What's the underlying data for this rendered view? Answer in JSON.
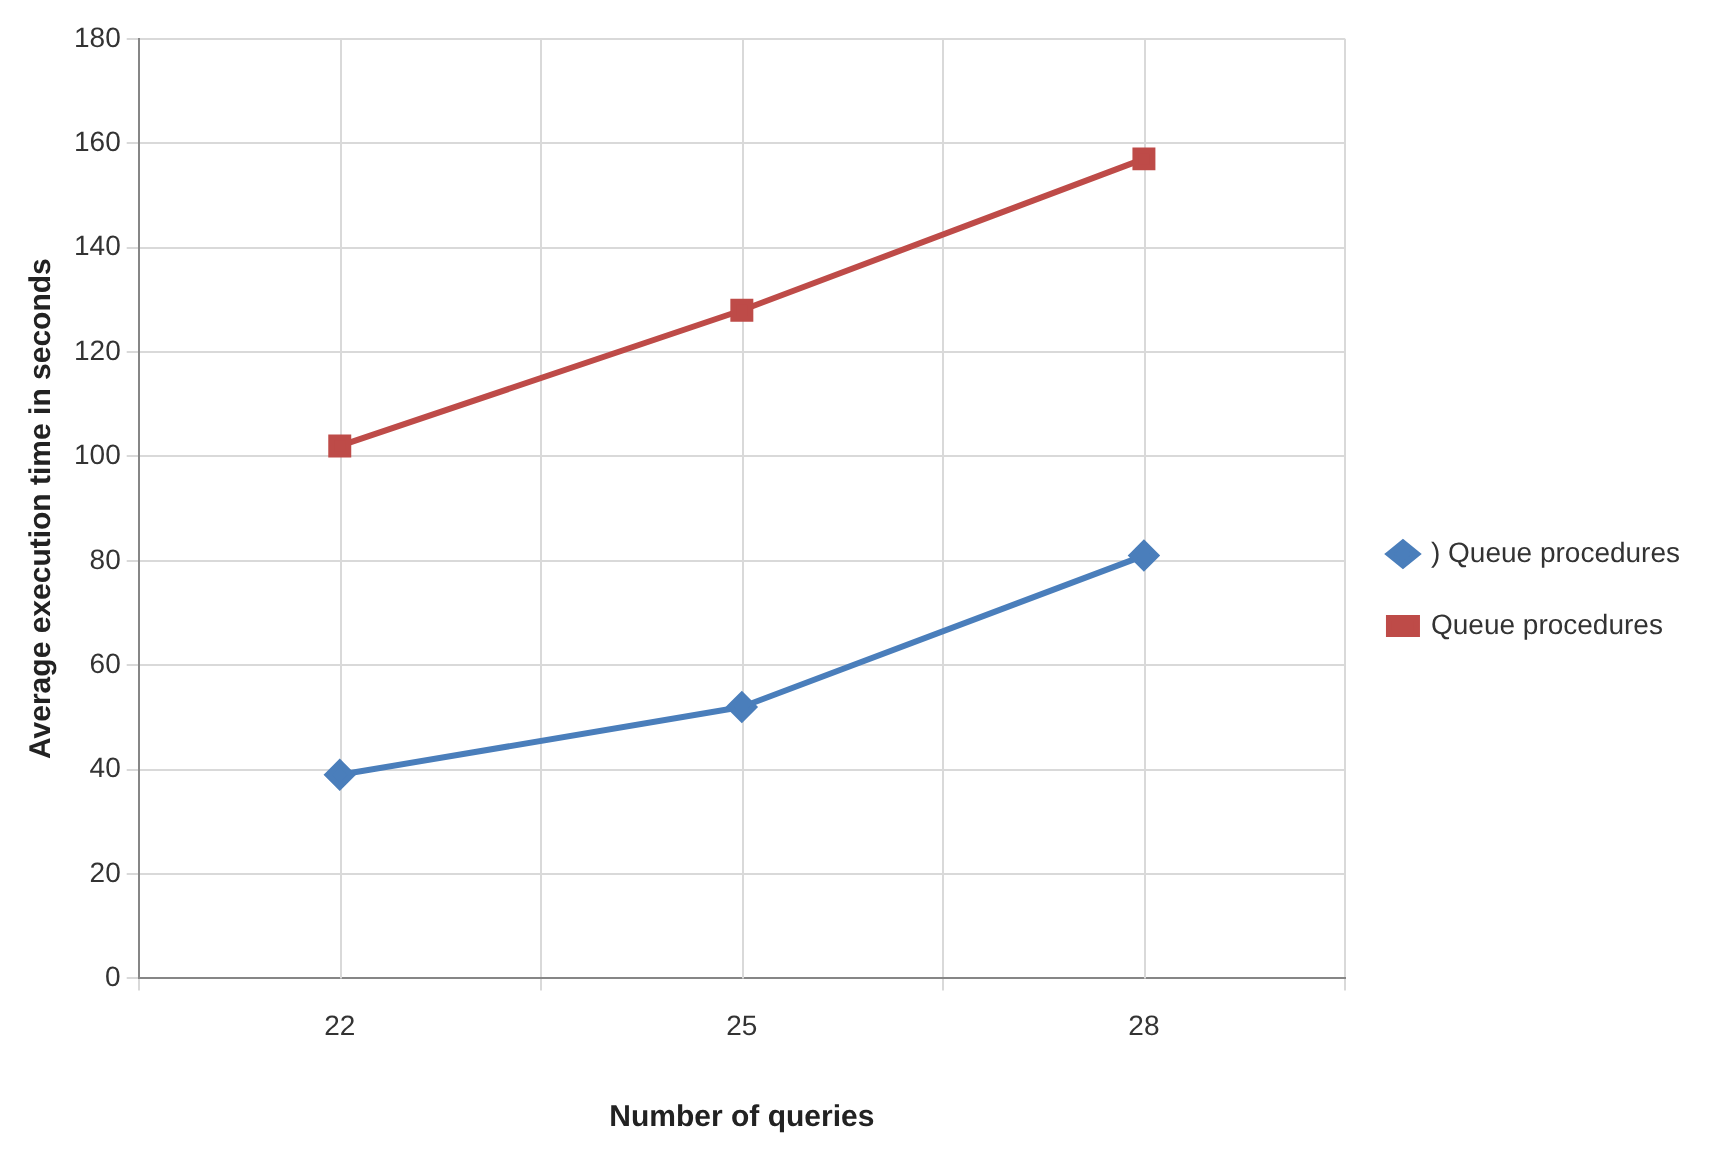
{
  "chart_data": {
    "type": "line",
    "xlabel": "Number of queries",
    "ylabel": "Average execution time in seconds",
    "categories": [
      "22",
      "25",
      "28"
    ],
    "series": [
      {
        "name": ") Queue procedures",
        "color": "#4a7ebb",
        "marker": "diamond",
        "values": [
          39,
          52,
          81
        ]
      },
      {
        "name": "Queue procedures",
        "color": "#be4b48",
        "marker": "square",
        "values": [
          102,
          128,
          157
        ]
      }
    ],
    "ylim": [
      0,
      180
    ],
    "yticks": [
      0,
      20,
      40,
      60,
      80,
      100,
      120,
      140,
      160,
      180
    ],
    "grid": true,
    "legend": "right"
  }
}
